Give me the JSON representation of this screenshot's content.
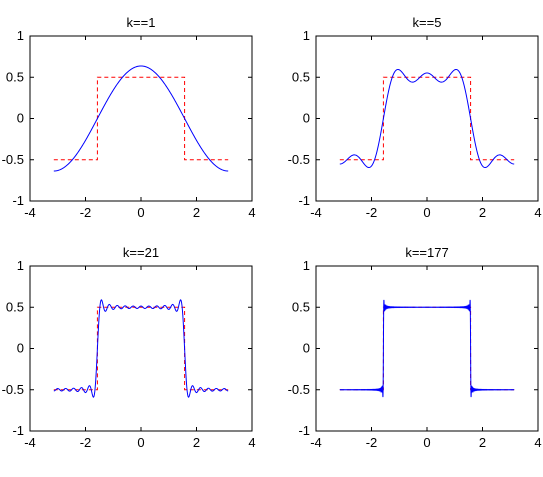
{
  "chart_data": [
    {
      "type": "line",
      "title": "k==1",
      "xlim": [
        -4,
        4
      ],
      "ylim": [
        -1,
        1
      ],
      "xticks": [
        "-4",
        "-2",
        "0",
        "2",
        "4"
      ],
      "yticks": [
        "-1",
        "-0.5",
        "0",
        "0.5",
        "1"
      ],
      "x_range": [
        -3.1416,
        3.1416
      ],
      "k": 1,
      "series": [
        {
          "style": "solid",
          "color": "#0000ff",
          "formula": "sum_{n=1..k step 2} (2/(n*pi)) * (-1)^((n-1)/2) * cos(n*x)"
        },
        {
          "style": "dashed",
          "color": "#ff0000",
          "formula": "0.5 if |x| < pi/2 else -0.5"
        }
      ]
    },
    {
      "type": "line",
      "title": "k==5",
      "xlim": [
        -4,
        4
      ],
      "ylim": [
        -1,
        1
      ],
      "xticks": [
        "-4",
        "-2",
        "0",
        "2",
        "4"
      ],
      "yticks": [
        "-1",
        "-0.5",
        "0",
        "0.5",
        "1"
      ],
      "x_range": [
        -3.1416,
        3.1416
      ],
      "k": 5,
      "series": [
        {
          "style": "solid",
          "color": "#0000ff",
          "formula": "sum_{n=1..k step 2} (2/(n*pi)) * (-1)^((n-1)/2) * cos(n*x)"
        },
        {
          "style": "dashed",
          "color": "#ff0000",
          "formula": "0.5 if |x| < pi/2 else -0.5"
        }
      ]
    },
    {
      "type": "line",
      "title": "k==21",
      "xlim": [
        -4,
        4
      ],
      "ylim": [
        -1,
        1
      ],
      "xticks": [
        "-4",
        "-2",
        "0",
        "2",
        "4"
      ],
      "yticks": [
        "-1",
        "-0.5",
        "0",
        "0.5",
        "1"
      ],
      "x_range": [
        -3.1416,
        3.1416
      ],
      "k": 21,
      "series": [
        {
          "style": "solid",
          "color": "#0000ff",
          "formula": "sum_{n=1..k step 2} (2/(n*pi)) * (-1)^((n-1)/2) * cos(n*x)"
        },
        {
          "style": "dashed",
          "color": "#ff0000",
          "formula": "0.5 if |x| < pi/2 else -0.5"
        }
      ]
    },
    {
      "type": "line",
      "title": "k==177",
      "xlim": [
        -4,
        4
      ],
      "ylim": [
        -1,
        1
      ],
      "xticks": [
        "-4",
        "-2",
        "0",
        "2",
        "4"
      ],
      "yticks": [
        "-1",
        "-0.5",
        "0",
        "0.5",
        "1"
      ],
      "x_range": [
        -3.1416,
        3.1416
      ],
      "k": 177,
      "series": [
        {
          "style": "solid",
          "color": "#0000ff",
          "formula": "sum_{n=1..k step 2} (2/(n*pi)) * (-1)^((n-1)/2) * cos(n*x)"
        },
        {
          "style": "dashed",
          "color": "#ff0000",
          "formula": "0.5 if |x| < pi/2 else -0.5"
        }
      ]
    }
  ]
}
